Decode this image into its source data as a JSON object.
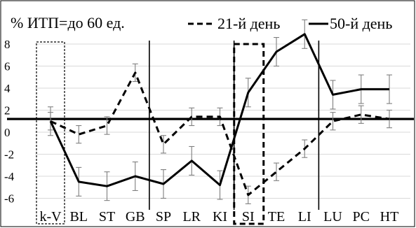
{
  "chart_data": {
    "type": "line",
    "title": "% ИТП=до 60 ед.",
    "categories": [
      "k-V",
      "BL",
      "ST",
      "GB",
      "SP",
      "LR",
      "KI",
      "SI",
      "TE",
      "LI",
      "LU",
      "PC",
      "HT"
    ],
    "ylim": [
      -7,
      9.5
    ],
    "yticks": [
      -6,
      -4,
      -2,
      0,
      2,
      4,
      6,
      8
    ],
    "grid": true,
    "legend_position": "top-right",
    "baseline": 1.2,
    "series": [
      {
        "name": "21-й день",
        "style": "dashed",
        "values": [
          1.0,
          -0.2,
          0.6,
          5.4,
          -1.1,
          1.4,
          1.4,
          -5.7,
          -3.6,
          -1.5,
          1.0,
          1.6,
          1.2
        ],
        "errors": [
          0.8,
          0.8,
          0.8,
          0.8,
          0.8,
          0.8,
          0.8,
          0.8,
          0.8,
          0.8,
          0.8,
          0.8,
          0.8
        ]
      },
      {
        "name": "50-й день",
        "style": "solid",
        "values": [
          1.0,
          -4.5,
          -4.9,
          -4.0,
          -4.7,
          -2.6,
          -4.8,
          3.6,
          7.3,
          8.9,
          3.4,
          3.9,
          3.9
        ],
        "errors": [
          1.3,
          1.3,
          1.3,
          1.3,
          1.3,
          1.3,
          1.3,
          1.3,
          1.3,
          1.3,
          1.3,
          1.3,
          1.3
        ]
      }
    ]
  }
}
